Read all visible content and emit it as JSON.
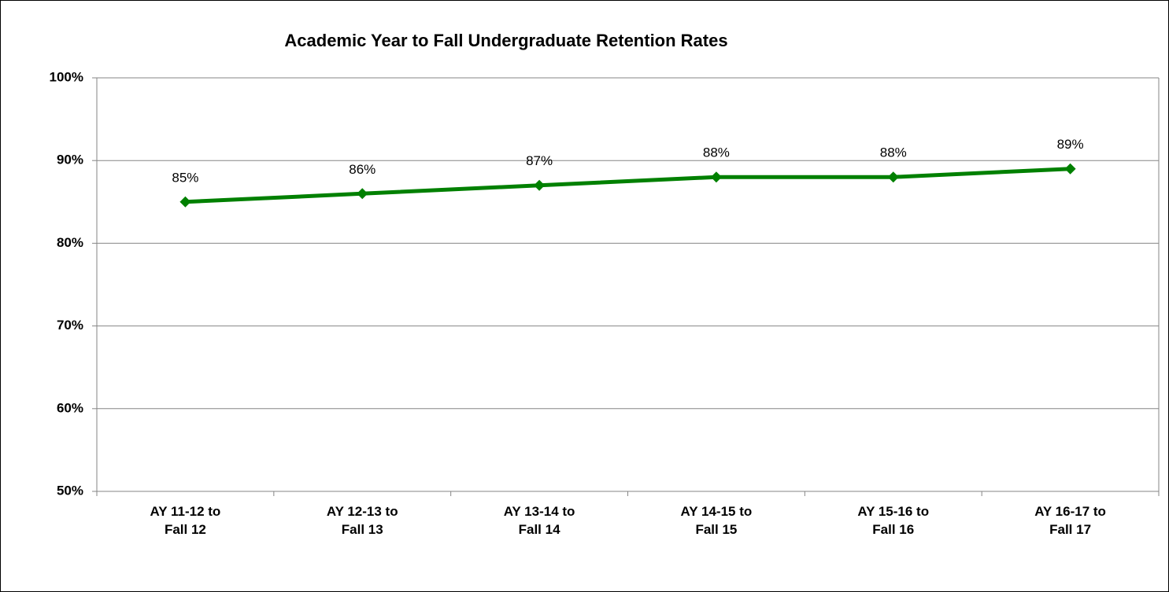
{
  "chart_data": {
    "type": "line",
    "title": "Academic Year to Fall Undergraduate Retention Rates",
    "categories": [
      "AY 11-12 to Fall 12",
      "AY 12-13 to Fall 13",
      "AY 13-14 to Fall 14",
      "AY 14-15 to Fall 15",
      "AY 15-16 to Fall 16",
      "AY 16-17 to Fall 17"
    ],
    "values": [
      85,
      86,
      87,
      88,
      88,
      89
    ],
    "value_labels": [
      "85%",
      "86%",
      "87%",
      "88%",
      "88%",
      "89%"
    ],
    "color": "#008000",
    "ylim": [
      50,
      100
    ],
    "yticks": [
      {
        "value": 50,
        "label": "50%"
      },
      {
        "value": 60,
        "label": "60%"
      },
      {
        "value": 70,
        "label": "70%"
      },
      {
        "value": 80,
        "label": "80%"
      },
      {
        "value": 90,
        "label": "90%"
      },
      {
        "value": 100,
        "label": "100%"
      }
    ],
    "grid": true
  }
}
